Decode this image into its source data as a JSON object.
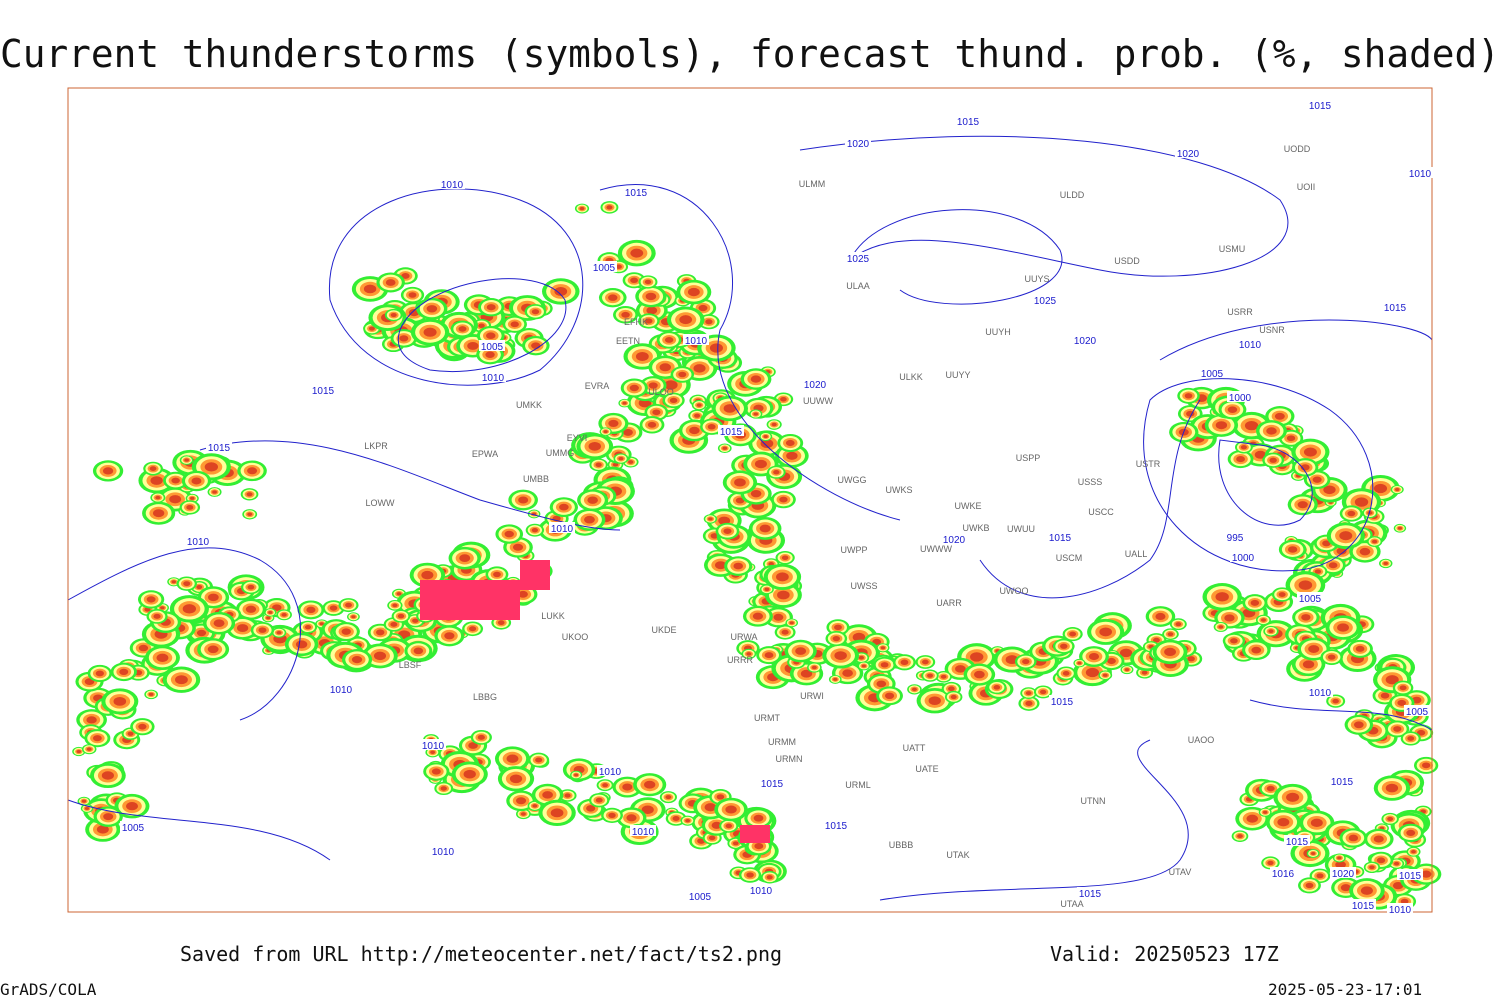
{
  "header": {
    "title": "Current thunderstorms (symbols), forecast thund. prob. (%, shaded)"
  },
  "footer": {
    "saved": "Saved from URL http://meteocenter.net/fact/ts2.png",
    "valid": "Valid: 20250523 17Z",
    "software": "GrADS/COLA",
    "timestamp": "2025-05-23-17:01"
  },
  "isobar_labels": [
    "1015",
    "1015",
    "1020",
    "1020",
    "1010",
    "1010",
    "1015",
    "1025",
    "1005",
    "1025",
    "1015",
    "1020",
    "1010",
    "1005",
    "1010",
    "1010",
    "1005",
    "1020",
    "1015",
    "1000",
    "1015",
    "1015",
    "1010",
    "1010",
    "1020",
    "1015",
    "995",
    "1000",
    "1005",
    "1010",
    "1015",
    "1010",
    "1005",
    "1010",
    "1010",
    "1015",
    "1015",
    "1005",
    "1015",
    "1010",
    "1010",
    "1015",
    "1016",
    "1020",
    "1015",
    "1010",
    "1005",
    "1015",
    "1015",
    "1010"
  ],
  "station_labels": [
    "UODD",
    "UOII",
    "ULMM",
    "ULDD",
    "USMU",
    "USDD",
    "ULAA",
    "UUYS",
    "USRR",
    "USNR",
    "UUYH",
    "EFHK",
    "EETN",
    "UUYY",
    "ULKK",
    "ULOO",
    "EVRA",
    "UMKK",
    "EYVI",
    "UMMG",
    "EPWA",
    "LKPR",
    "UMBB",
    "UUWW",
    "USSS",
    "USTR",
    "USCC",
    "UWGG",
    "UWKS",
    "UWKE",
    "USPP",
    "LOWW",
    "USCM",
    "UWPP",
    "UWWW",
    "UWUU",
    "UWKB",
    "UALL",
    "UWSS",
    "UARR",
    "UWOO",
    "UKOO",
    "LUKK",
    "UKDE",
    "URWA",
    "URRR",
    "URWI",
    "URMT",
    "URMM",
    "URMN",
    "URML",
    "UATT",
    "UATE",
    "UTNN",
    "UAOO",
    "UTAK",
    "UTAV",
    "UTAA",
    "UBBB",
    "LBSF",
    "LBBG"
  ]
}
